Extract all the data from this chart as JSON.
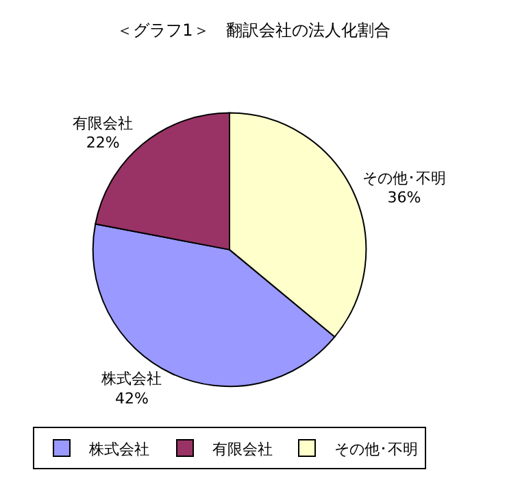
{
  "chart_data": {
    "type": "pie",
    "title": "＜グラフ1＞　翻訳会社の法人化割合",
    "categories": [
      "株式会社",
      "有限会社",
      "その他･不明"
    ],
    "values": [
      42,
      22,
      36
    ],
    "value_labels": [
      "42%",
      "22%",
      "36%"
    ],
    "colors": [
      "#9999ff",
      "#993366",
      "#ffffcc"
    ],
    "legend": "bottom"
  }
}
